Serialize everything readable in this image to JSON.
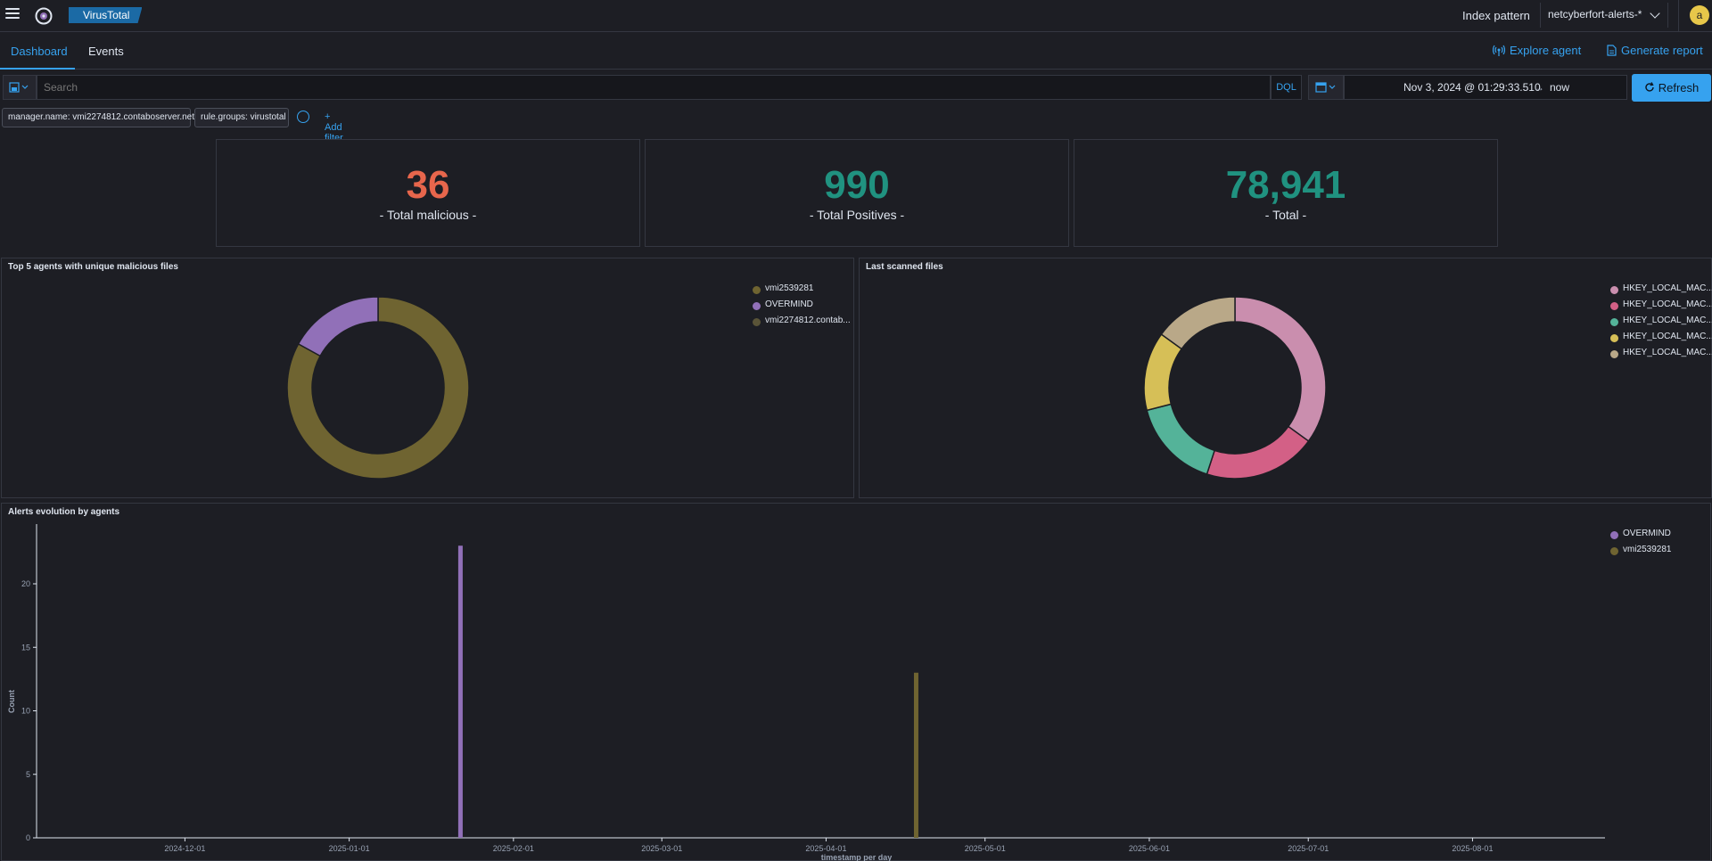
{
  "header": {
    "app_badge": "VirusTotal",
    "index_pattern_label": "Index pattern",
    "index_pattern_value": "netcyberfort-alerts-*",
    "avatar_letter": "a"
  },
  "tabs": [
    {
      "label": "Dashboard",
      "active": true
    },
    {
      "label": "Events",
      "active": false
    }
  ],
  "actions": {
    "explore_agent": "Explore agent",
    "generate_report": "Generate report"
  },
  "query": {
    "search_placeholder": "Search",
    "language": "DQL",
    "date_start": "Nov 3, 2024 @ 01:29:33.510",
    "date_arrow": "→",
    "date_end": "now",
    "refresh_label": "Refresh"
  },
  "filters": [
    "manager.name: vmi2274812.contaboserver.net",
    "rule.groups: virustotal"
  ],
  "add_filter": "+ Add filter",
  "metrics": [
    {
      "value": "36",
      "label": "- Total malicious -",
      "color": "#e7664c"
    },
    {
      "value": "990",
      "label": "- Total Positives -",
      "color": "#209280"
    },
    {
      "value": "78,941",
      "label": "- Total -",
      "color": "#209280"
    }
  ],
  "panels": {
    "top_agents": {
      "title": "Top 5 agents with unique malicious files",
      "legend": [
        {
          "label": "vmi2539281",
          "color": "#6f6431"
        },
        {
          "label": "OVERMIND",
          "color": "#9170b8"
        },
        {
          "label": "vmi2274812.contab...",
          "color": "#5a5438"
        }
      ]
    },
    "last_scanned": {
      "title": "Last scanned files",
      "legend": [
        {
          "label": "HKEY_LOCAL_MAC...",
          "color": "#ca8eae"
        },
        {
          "label": "HKEY_LOCAL_MAC...",
          "color": "#d36086"
        },
        {
          "label": "HKEY_LOCAL_MAC...",
          "color": "#54b399"
        },
        {
          "label": "HKEY_LOCAL_MAC...",
          "color": "#d6bf57"
        },
        {
          "label": "HKEY_LOCAL_MAC...",
          "color": "#b9a888"
        }
      ]
    },
    "alerts_evolution": {
      "title": "Alerts evolution by agents",
      "legend": [
        {
          "label": "OVERMIND",
          "color": "#9170b8"
        },
        {
          "label": "vmi2539281",
          "color": "#6f6431"
        }
      ]
    }
  },
  "chart_data": [
    {
      "type": "pie",
      "title": "Top 5 agents with unique malicious files",
      "donut": true,
      "categories": [
        "vmi2539281",
        "OVERMIND",
        "vmi2274812.contab..."
      ],
      "values": [
        83,
        17,
        0
      ],
      "colors": [
        "#6f6431",
        "#9170b8",
        "#5a5438"
      ]
    },
    {
      "type": "pie",
      "title": "Last scanned files",
      "donut": true,
      "categories": [
        "HKEY_LOCAL_MAC...",
        "HKEY_LOCAL_MAC...",
        "HKEY_LOCAL_MAC...",
        "HKEY_LOCAL_MAC...",
        "HKEY_LOCAL_MAC..."
      ],
      "values": [
        35,
        20,
        16,
        14,
        15
      ],
      "colors": [
        "#ca8eae",
        "#d36086",
        "#54b399",
        "#d6bf57",
        "#b9a888"
      ]
    },
    {
      "type": "bar",
      "title": "Alerts evolution by agents",
      "xlabel": "timestamp per day",
      "ylabel": "Count",
      "ylim": [
        0,
        24
      ],
      "yticks": [
        0,
        5,
        10,
        15,
        20
      ],
      "xticks": [
        "2024-12-01",
        "2025-01-01",
        "2025-02-01",
        "2025-03-01",
        "2025-04-01",
        "2025-05-01",
        "2025-06-01",
        "2025-07-01",
        "2025-08-01"
      ],
      "xlim": [
        "2024-11-03",
        "2025-08-26"
      ],
      "series": [
        {
          "name": "OVERMIND",
          "color": "#9170b8",
          "points": [
            {
              "x": "2025-01-22",
              "y": 23
            }
          ]
        },
        {
          "name": "vmi2539281",
          "color": "#6f6431",
          "points": [
            {
              "x": "2025-04-18",
              "y": 13
            }
          ]
        }
      ]
    }
  ]
}
